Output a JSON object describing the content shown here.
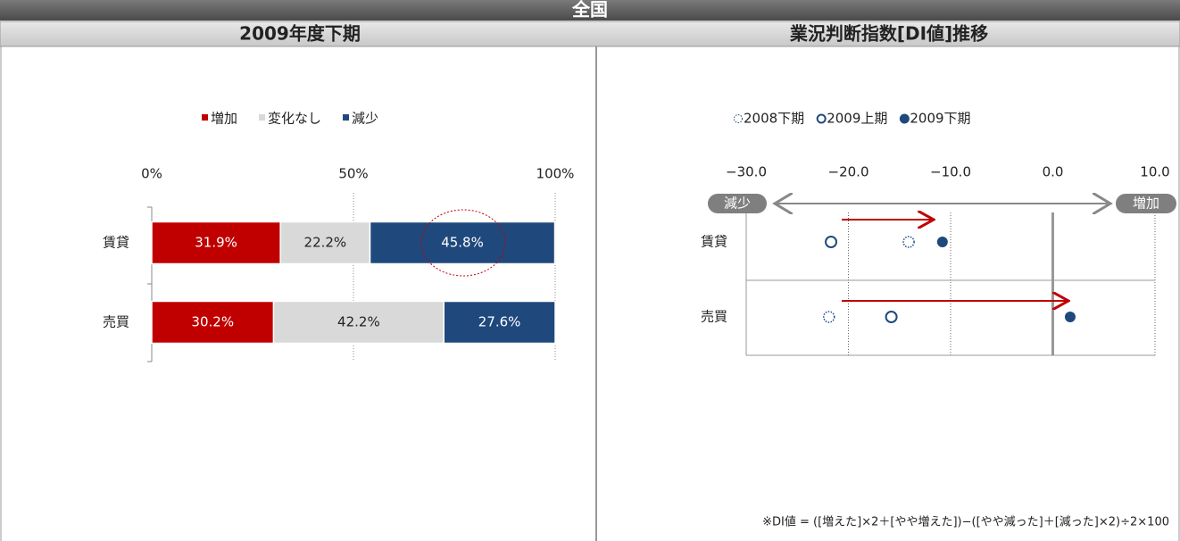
{
  "header": "全国",
  "chart_data": [
    {
      "type": "stacked-bar",
      "title": "2009年度下期",
      "categories": [
        "賃貸",
        "売買"
      ],
      "series": [
        {
          "name": "増加",
          "color": "#c00000",
          "label_color": "#ffffff",
          "values": [
            31.9,
            30.2
          ],
          "value_labels": [
            "31.9%",
            "30.2%"
          ]
        },
        {
          "name": "変化なし",
          "color": "#d9d9d9",
          "label_color": "#222222",
          "values": [
            22.2,
            42.2
          ],
          "value_labels": [
            "22.2%",
            "42.2%"
          ]
        },
        {
          "name": "減少",
          "color": "#1f497d",
          "label_color": "#ffffff",
          "values": [
            45.8,
            27.6
          ],
          "value_labels": [
            "45.8%",
            "27.6%"
          ]
        }
      ],
      "xlim": [
        0,
        100
      ],
      "xticks": [
        {
          "value": 0,
          "label": "0%"
        },
        {
          "value": 50,
          "label": "50%"
        },
        {
          "value": 100,
          "label": "100%"
        }
      ],
      "grid": true,
      "legend": "top"
    },
    {
      "type": "dot",
      "title": "業況判断指数[DI値]推移",
      "categories": [
        "賃貸",
        "売買"
      ],
      "series": [
        {
          "name": "2008下期",
          "color": "#1f497d",
          "marker": "dotted-circle",
          "values": [
            -14.1,
            -21.9
          ]
        },
        {
          "name": "2009上期",
          "color": "#1f497d",
          "marker": "circle",
          "values": [
            -21.7,
            -15.8
          ]
        },
        {
          "name": "2009下期",
          "color": "#1f497d",
          "marker": "filled-circle",
          "values": [
            -10.8,
            1.7
          ]
        }
      ],
      "xlim": [
        -30,
        10
      ],
      "xticks": [
        {
          "value": -30,
          "label": "−30.0"
        },
        {
          "value": -20,
          "label": "−20.0"
        },
        {
          "value": -10,
          "label": "−10.0"
        },
        {
          "value": 0,
          "label": "0.0"
        },
        {
          "value": 10,
          "label": "10.0"
        }
      ],
      "grid": true,
      "legend": "top",
      "annotations": [
        "減少",
        "増加"
      ],
      "note": "※DI値 = ([増えた]×2＋[やや増えた])−([やや減った]＋[減った]×2)÷2×100"
    }
  ]
}
